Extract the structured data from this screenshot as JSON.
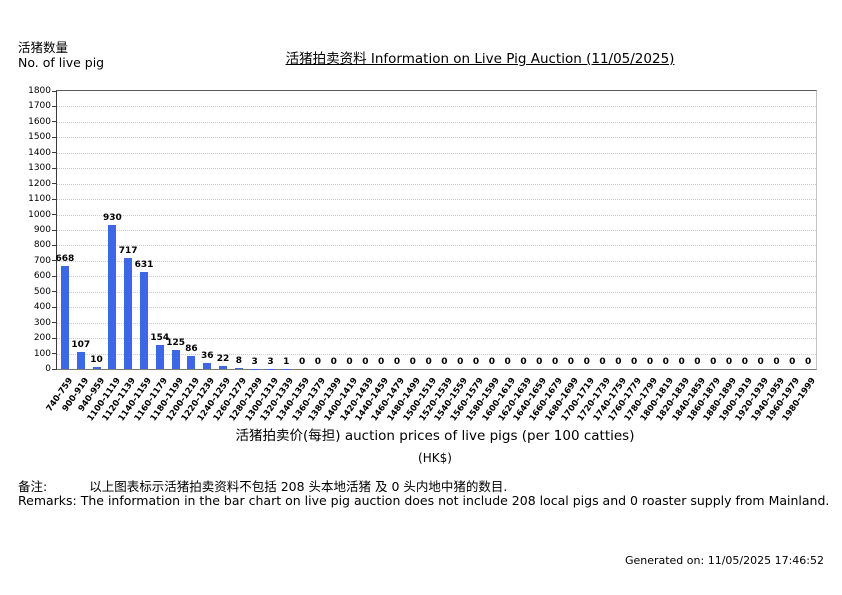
{
  "page": {
    "y_axis_caption_cn": "活猪数量",
    "y_axis_caption_en": "No. of live pig",
    "title": "活猪拍卖资料 Information on Live Pig Auction (11/05/2025)",
    "x_axis_title": "活猪拍卖价(每担) auction prices of live pigs (per 100 catties)",
    "x_axis_subtitle": "(HK$)",
    "remarks_cn_label": "备注:",
    "remarks_cn_text": "以上图表标示活猪拍卖资料不包括 208 头本地活猪 及 0 头内地中猪的数目.",
    "remarks_en": "Remarks: The information in the bar chart on live pig auction does not include 208 local pigs and 0 roaster supply from Mainland.",
    "generated_on": "Generated on: 11/05/2025 17:46:52"
  },
  "chart_data": {
    "type": "bar",
    "title": "活猪拍卖资料 Information on Live Pig Auction (11/05/2025)",
    "xlabel": "活猪拍卖价(每担) auction prices of live pigs (per 100 catties) (HK$)",
    "ylabel": "活猪数量 No. of live pig",
    "ylim": [
      0,
      1800
    ],
    "ytick_step": 100,
    "grid": true,
    "legend": false,
    "bar_color": "#3d67e6",
    "categories": [
      "740-759",
      "900-919",
      "940-959",
      "1100-1119",
      "1120-1139",
      "1140-1159",
      "1160-1179",
      "1180-1199",
      "1200-1219",
      "1220-1239",
      "1240-1259",
      "1260-1279",
      "1280-1299",
      "1300-1319",
      "1320-1339",
      "1340-1359",
      "1360-1379",
      "1380-1399",
      "1400-1419",
      "1420-1439",
      "1440-1459",
      "1460-1479",
      "1480-1499",
      "1500-1519",
      "1520-1539",
      "1540-1559",
      "1560-1579",
      "1580-1599",
      "1600-1619",
      "1620-1639",
      "1640-1659",
      "1660-1679",
      "1680-1699",
      "1700-1719",
      "1720-1739",
      "1740-1759",
      "1760-1779",
      "1780-1799",
      "1800-1819",
      "1820-1839",
      "1840-1859",
      "1860-1879",
      "1880-1899",
      "1900-1919",
      "1920-1939",
      "1940-1959",
      "1960-1979",
      "1980-1999"
    ],
    "values": [
      668,
      107,
      10,
      930,
      717,
      631,
      154,
      125,
      86,
      36,
      22,
      8,
      3,
      3,
      1,
      0,
      0,
      0,
      0,
      0,
      0,
      0,
      0,
      0,
      0,
      0,
      0,
      0,
      0,
      0,
      0,
      0,
      0,
      0,
      0,
      0,
      0,
      0,
      0,
      0,
      0,
      0,
      0,
      0,
      0,
      0,
      0,
      0
    ]
  }
}
